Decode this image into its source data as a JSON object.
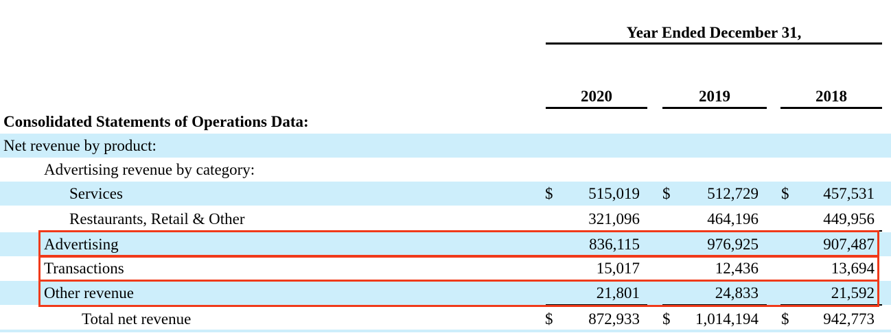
{
  "header": {
    "period_label": "Year Ended December 31,",
    "years": [
      "2020",
      "2019",
      "2018"
    ]
  },
  "section_title": "Consolidated Statements of Operations Data:",
  "rows": {
    "net_revenue_by_product": {
      "label": "Net revenue by product:"
    },
    "advertising_by_category": {
      "label": "Advertising revenue by category:"
    },
    "services": {
      "label": "Services",
      "currency": "$",
      "values": [
        "515,019",
        "512,729",
        "457,531"
      ]
    },
    "restaurants": {
      "label": "Restaurants, Retail & Other",
      "values": [
        "321,096",
        "464,196",
        "449,956"
      ]
    },
    "advertising": {
      "label": "Advertising",
      "values": [
        "836,115",
        "976,925",
        "907,487"
      ]
    },
    "transactions": {
      "label": "Transactions",
      "values": [
        "15,017",
        "12,436",
        "13,694"
      ]
    },
    "other_revenue": {
      "label": "Other revenue",
      "values": [
        "21,801",
        "24,833",
        "21,592"
      ]
    },
    "total": {
      "label": "Total net revenue",
      "currency": "$",
      "values": [
        "872,933",
        "1,014,194",
        "942,773"
      ]
    }
  },
  "colors": {
    "band": "#cdeefb",
    "highlight": "#f03a1a"
  }
}
